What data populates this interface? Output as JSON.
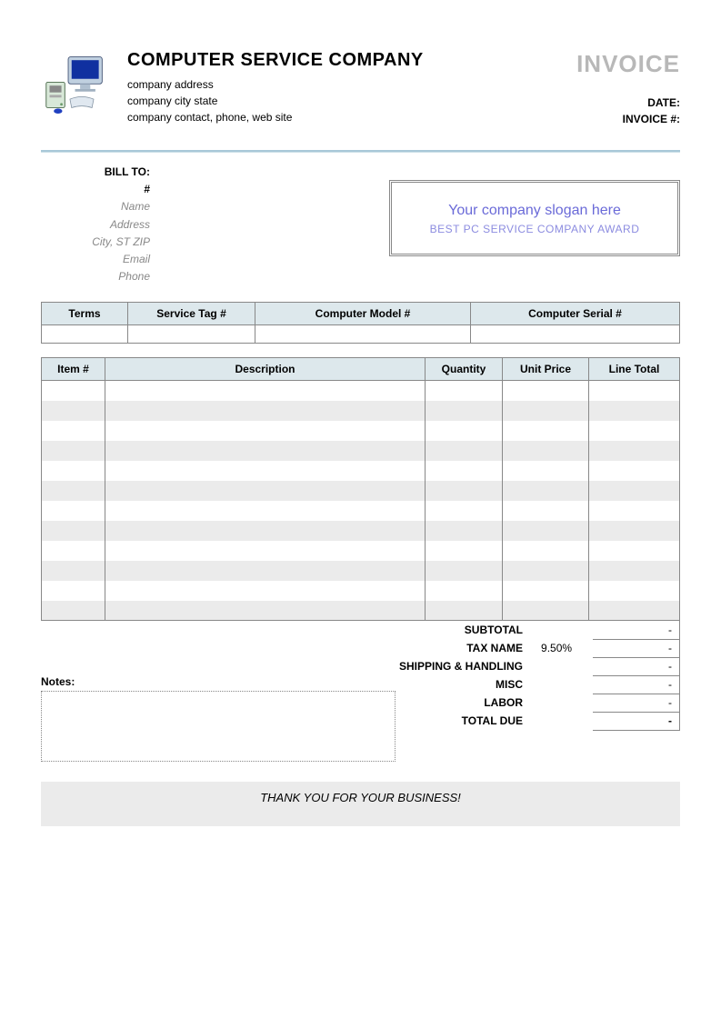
{
  "header": {
    "company_name": "COMPUTER SERVICE COMPANY",
    "line1": "company address",
    "line2": "company city state",
    "line3": "company contact, phone, web site",
    "invoice_title": "INVOICE",
    "date_label": "DATE:",
    "invoice_no_label": "INVOICE #:"
  },
  "bill_to": {
    "header": "BILL TO:",
    "hash": "#",
    "name": "Name",
    "address": "Address",
    "city": "City, ST ZIP",
    "email": "Email",
    "phone": "Phone"
  },
  "slogan": {
    "main": "Your company slogan here",
    "sub": "BEST PC SERVICE COMPANY AWARD"
  },
  "info_table": {
    "columns": [
      "Terms",
      "Service Tag #",
      "Computer Model #",
      "Computer Serial #"
    ],
    "widths": [
      "95px",
      "140px",
      "auto",
      "230px"
    ]
  },
  "items_table": {
    "columns": [
      "Item #",
      "Description",
      "Quantity",
      "Unit Price",
      "Line Total"
    ],
    "row_count": 12,
    "header_bg": "#dde8ec",
    "stripe_bg": "#ebebeb",
    "border_color": "#888888"
  },
  "notes": {
    "label": "Notes:"
  },
  "totals": {
    "rows": [
      {
        "label": "SUBTOTAL",
        "rate": "",
        "value": "-"
      },
      {
        "label": "TAX NAME",
        "rate": "9.50%",
        "value": "-"
      },
      {
        "label": "SHIPPING & HANDLING",
        "rate": "",
        "value": "-"
      },
      {
        "label": "MISC",
        "rate": "",
        "value": "-"
      },
      {
        "label": "LABOR",
        "rate": "",
        "value": "-"
      },
      {
        "label": "TOTAL DUE",
        "rate": "",
        "value": "-",
        "bold": true
      }
    ]
  },
  "footer": {
    "thanks": "THANK YOU FOR YOUR BUSINESS!"
  },
  "colors": {
    "header_rule": "#a8c8d8",
    "invoice_gray": "#b8b8b8",
    "slogan_color": "#6a6ad8",
    "table_header_bg": "#dde8ec",
    "stripe": "#ebebeb"
  }
}
